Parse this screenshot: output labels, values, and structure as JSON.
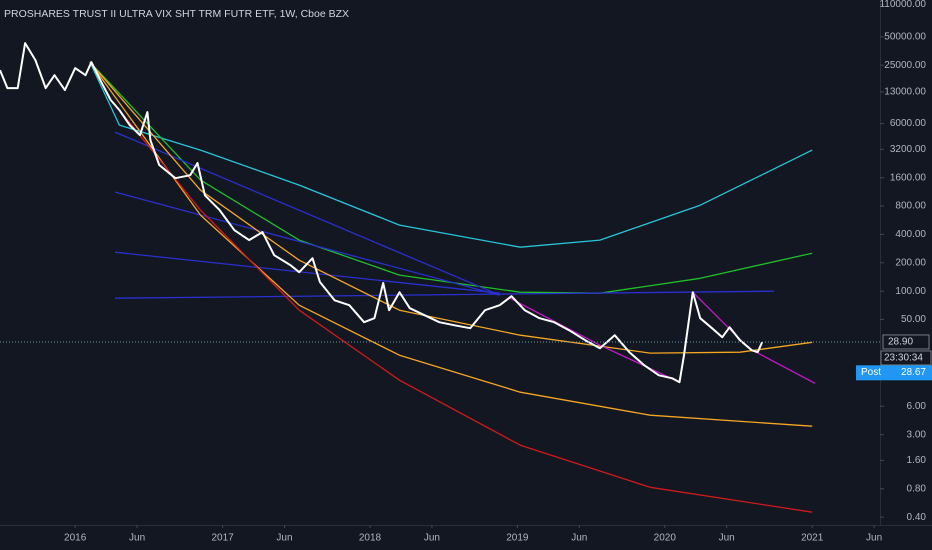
{
  "chart_data": {
    "type": "line",
    "title": "PROSHARES TRUST II ULTRA VIX SHT TRM FUTR ETF, 1W, Cboe BZX",
    "log_y": true,
    "grid": false,
    "xlim": [
      2015.49,
      2021.46
    ],
    "ylim": [
      0.33,
      123000
    ],
    "xticks": [
      2016,
      {
        "value": 2016.42,
        "label": "Jun"
      },
      2017,
      {
        "value": 2017.42,
        "label": "Jun"
      },
      2018,
      {
        "value": 2018.42,
        "label": "Jun"
      },
      2019,
      {
        "value": 2019.42,
        "label": "Jun"
      },
      2020,
      {
        "value": 2020.42,
        "label": "Jun"
      },
      2021,
      {
        "value": 2021.42,
        "label": "Jun"
      }
    ],
    "yticks": [
      {
        "value": 110000,
        "label": "110000.00"
      },
      {
        "value": 50000,
        "label": "50000.00"
      },
      {
        "value": 25000,
        "label": "25000.00"
      },
      {
        "value": 13000,
        "label": "13000.00"
      },
      {
        "value": 6000,
        "label": "6000.00"
      },
      {
        "value": 3200,
        "label": "3200.00"
      },
      {
        "value": 1600,
        "label": "1600.00"
      },
      {
        "value": 800,
        "label": "800.00"
      },
      {
        "value": 400,
        "label": "400.00"
      },
      {
        "value": 200,
        "label": "200.00"
      },
      {
        "value": 100,
        "label": "100.00"
      },
      {
        "value": 50,
        "label": "50.00"
      },
      {
        "value": 6,
        "label": "6.00"
      },
      {
        "value": 3,
        "label": "3.00"
      },
      {
        "value": 1.6,
        "label": "1.60"
      },
      {
        "value": 0.8,
        "label": "0.80"
      },
      {
        "value": 0.4,
        "label": "0.40"
      }
    ],
    "series": [
      {
        "color": "#ffffff",
        "width": 2,
        "x": [
          2015.49,
          2015.54,
          2015.61,
          2015.66,
          2015.73,
          2015.8,
          2015.86,
          2015.93,
          2016.0,
          2016.07,
          2016.11,
          2016.17,
          2016.24,
          2016.3,
          2016.37,
          2016.44,
          2016.49,
          2016.51,
          2016.57,
          2016.68,
          2016.78,
          2016.83,
          2016.88,
          2016.98,
          2017.08,
          2017.18,
          2017.27,
          2017.35,
          2017.46,
          2017.52,
          2017.61,
          2017.66,
          2017.76,
          2017.86,
          2017.96,
          2018.03,
          2018.09,
          2018.13,
          2018.2,
          2018.27,
          2018.37,
          2018.47,
          2018.57,
          2018.68,
          2018.78,
          2018.88,
          2018.96,
          2019.05,
          2019.15,
          2019.25,
          2019.35,
          2019.46,
          2019.56,
          2019.66,
          2019.76,
          2019.86,
          2019.96,
          2020.05,
          2020.1,
          2020.13,
          2020.19,
          2020.24,
          2020.32,
          2020.39,
          2020.44,
          2020.51,
          2020.59,
          2020.63,
          2020.66
        ],
        "values": [
          22200,
          14300,
          14300,
          42900,
          28300,
          14300,
          19600,
          13600,
          23300,
          19600,
          27000,
          17400,
          10700,
          8340,
          5780,
          4530,
          7940,
          4010,
          2180,
          1580,
          1700,
          2290,
          1040,
          725,
          444,
          348,
          423,
          241,
          189,
          159,
          224,
          125,
          80,
          71,
          46.9,
          51.7,
          122,
          62.8,
          97.6,
          66,
          55.6,
          46.9,
          43.5,
          40.5,
          62.8,
          71,
          88.5,
          62.8,
          51.7,
          46.9,
          38.5,
          30.2,
          24.8,
          34.1,
          22.5,
          16.4,
          12.8,
          11.9,
          10.8,
          20.9,
          97.6,
          51.7,
          40.5,
          32.5,
          41.5,
          30.2,
          23.6,
          22.5,
          28.7
        ]
      },
      {
        "color": "#26c6da",
        "width": 1.3,
        "x": [
          2016.1,
          2016.3,
          2016.85,
          2017.52,
          2018.2,
          2019.02,
          2019.56,
          2020.24,
          2021.0
        ],
        "values": [
          27000,
          5780,
          3140,
          1335,
          502,
          293,
          348,
          818,
          3140
        ]
      },
      {
        "color": "#1fbf2a",
        "width": 1.3,
        "x": [
          2016.1,
          2016.85,
          2017.52,
          2018.2,
          2019.02,
          2019.56,
          2020.24,
          2021.0
        ],
        "values": [
          27000,
          1510,
          348,
          148,
          97.6,
          95.2,
          137,
          253
        ]
      },
      {
        "color": "#2a2fd0",
        "width": 1.3,
        "x": [
          2016.27,
          2018.88
        ],
        "values": [
          4870,
          90.7
        ]
      },
      {
        "color": "#2a2fd0",
        "width": 1.3,
        "x": [
          2016.27,
          2018.88
        ],
        "values": [
          1125,
          90.7
        ]
      },
      {
        "color": "#2a2fd0",
        "width": 1.3,
        "x": [
          2016.27,
          2018.88
        ],
        "values": [
          259,
          95.2
        ]
      },
      {
        "color": "#2a2fd0",
        "width": 1.3,
        "x": [
          2016.27,
          2020.74
        ],
        "values": [
          84.3,
          100
        ]
      },
      {
        "color": "#f5a623",
        "width": 1.3,
        "x": [
          2016.1,
          2016.85,
          2017.52,
          2018.2,
          2019.02,
          2019.9,
          2020.51,
          2021.0
        ],
        "values": [
          27000,
          1180,
          213,
          62.8,
          34.1,
          22.0,
          22.5,
          28.7
        ]
      },
      {
        "color": "#f5a623",
        "width": 1.3,
        "x": [
          2016.1,
          2016.85,
          2017.52,
          2018.2,
          2019.02,
          2019.9,
          2021.0
        ],
        "values": [
          27000,
          641,
          71,
          20.9,
          8.47,
          4.83,
          3.69
        ]
      },
      {
        "color": "#d11a1a",
        "width": 1.3,
        "x": [
          2016.3,
          2016.85,
          2017.52,
          2018.2,
          2019.02,
          2019.9,
          2021.0
        ],
        "values": [
          8340,
          725,
          62.8,
          11.35,
          2.32,
          0.83,
          0.451
        ]
      },
      {
        "color": "#c318c9",
        "width": 1.3,
        "x": [
          2018.95,
          2019.56,
          2020.1
        ],
        "values": [
          84.3,
          26.7,
          10.8
        ]
      },
      {
        "color": "#c318c9",
        "width": 1.3,
        "x": [
          2020.19,
          2020.57,
          2021.02
        ],
        "values": [
          97.6,
          24.8,
          10.5
        ]
      }
    ],
    "price_line": {
      "value": 28.9,
      "label": "28.90"
    },
    "countdown": "23:30:34",
    "post": {
      "label": "Post",
      "value": 28.67
    }
  }
}
